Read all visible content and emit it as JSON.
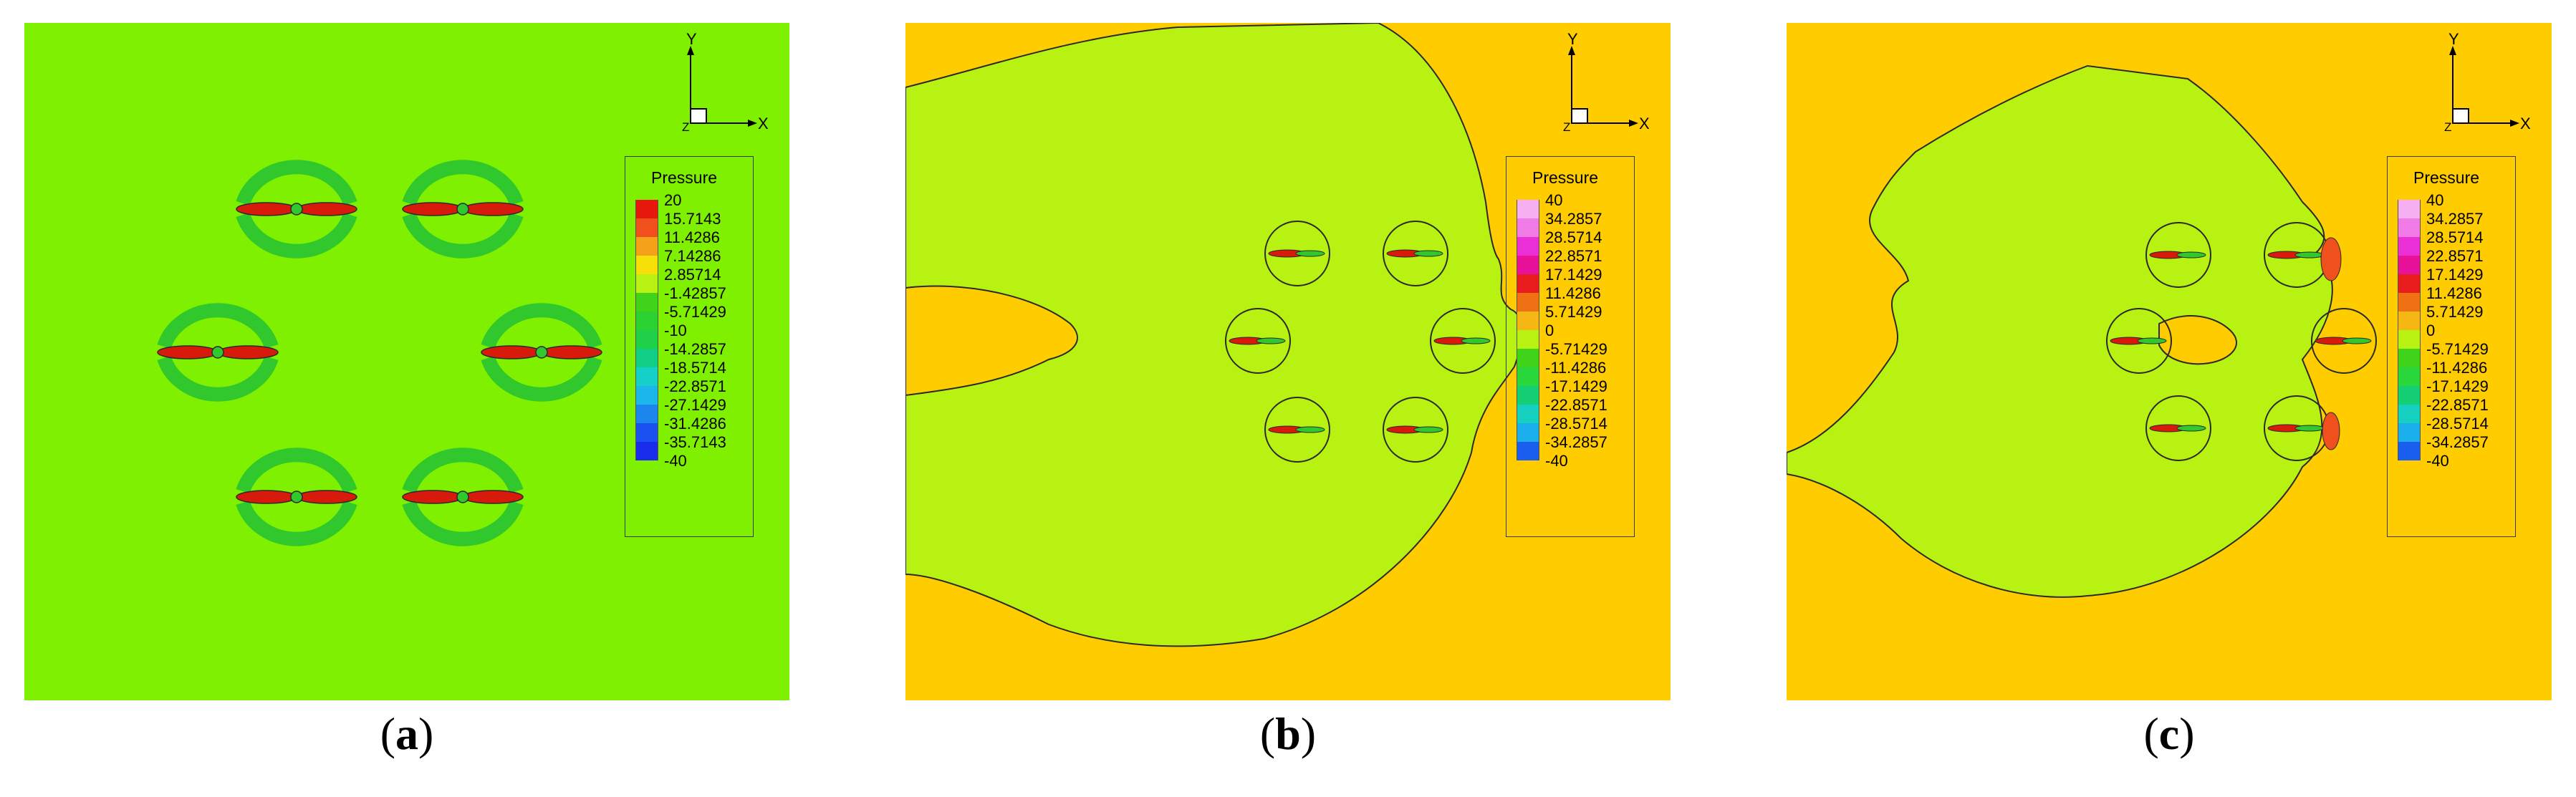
{
  "panels": [
    {
      "id": "a",
      "caption": "a",
      "background": "#7ff000",
      "legend": {
        "title": "Pressure",
        "colors": [
          "#e8170c",
          "#f0501c",
          "#f6a11a",
          "#f7e008",
          "#b8f213",
          "#3fd31a",
          "#2cd232",
          "#20d048",
          "#12cf88",
          "#14d0c8",
          "#1cb6ea",
          "#1c86ee",
          "#1a50ef",
          "#1a2ceb"
        ],
        "labels": [
          "20",
          "15.7143",
          "11.4286",
          "7.14286",
          "2.85714",
          "-1.42857",
          "-5.71429",
          "-10",
          "-14.2857",
          "-18.5714",
          "-22.8571",
          "-27.1429",
          "-31.4286",
          "-35.7143",
          "-40"
        ]
      }
    },
    {
      "id": "b",
      "caption": "b",
      "background": "#ffcc00",
      "legend": {
        "title": "Pressure",
        "colors": [
          "#f6b0f2",
          "#f07ae6",
          "#ea2fd6",
          "#e8129a",
          "#e81c1c",
          "#f07014",
          "#f6b614",
          "#b8f213",
          "#3fd31a",
          "#2ad73a",
          "#14cf74",
          "#16d0c0",
          "#1aaeea",
          "#1a5ef0"
        ],
        "labels": [
          "40",
          "34.2857",
          "28.5714",
          "22.8571",
          "17.1429",
          "11.4286",
          "5.71429",
          "0",
          "-5.71429",
          "-11.4286",
          "-17.1429",
          "-22.8571",
          "-28.5714",
          "-34.2857",
          "-40"
        ]
      }
    },
    {
      "id": "c",
      "caption": "c",
      "background": "#ffcc00",
      "legend": {
        "title": "Pressure",
        "colors": [
          "#f6b0f2",
          "#f07ae6",
          "#ea2fd6",
          "#e8129a",
          "#e81c1c",
          "#f07014",
          "#f6b614",
          "#b8f213",
          "#3fd31a",
          "#2ad73a",
          "#14cf74",
          "#16d0c0",
          "#1aaeea",
          "#1a5ef0"
        ],
        "labels": [
          "40",
          "34.2857",
          "28.5714",
          "22.8571",
          "17.1429",
          "11.4286",
          "5.71429",
          "0",
          "-5.71429",
          "-11.4286",
          "-17.1429",
          "-22.8571",
          "-28.5714",
          "-34.2857",
          "-40"
        ]
      }
    }
  ],
  "axes": {
    "y": "Y",
    "x": "X",
    "z": "Z"
  },
  "domain_color": "#b8f213",
  "colors": {
    "ring": "#30c82c",
    "red": "#d71a0c",
    "orange": "#f08a18",
    "outline": "#2a2a2a"
  }
}
